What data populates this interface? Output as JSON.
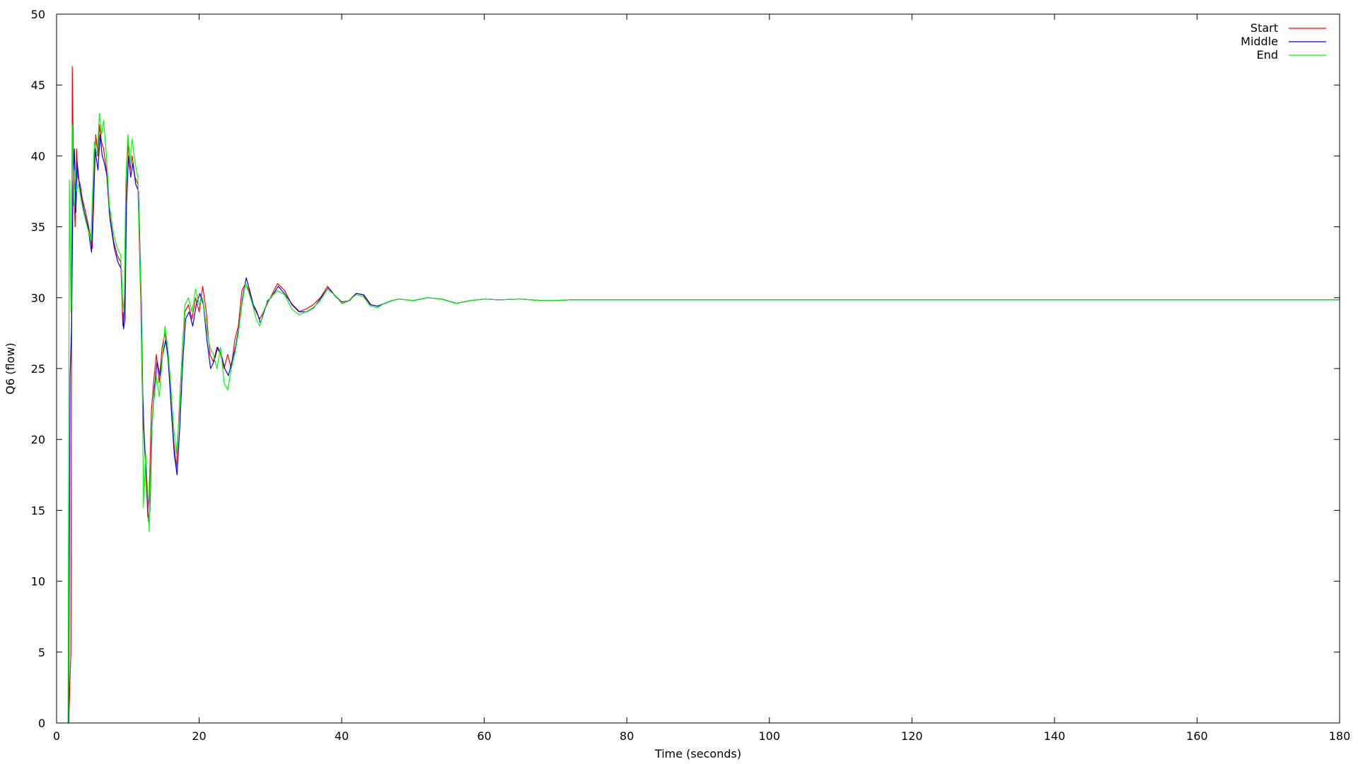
{
  "chart_data": {
    "type": "line",
    "title": "",
    "xlabel": "Time (seconds)",
    "ylabel": "Q6 (flow)",
    "xlim": [
      0,
      180
    ],
    "ylim": [
      0,
      50
    ],
    "xticks": [
      0,
      20,
      40,
      60,
      80,
      100,
      120,
      140,
      160,
      180
    ],
    "yticks": [
      0,
      5,
      10,
      15,
      20,
      25,
      30,
      35,
      40,
      45,
      50
    ],
    "grid": false,
    "legend_position": "top-right",
    "series": [
      {
        "name": "Start",
        "color": "#ff0000",
        "x": [
          1.7,
          2.0,
          2.2,
          2.4,
          2.6,
          2.8,
          3.0,
          3.3,
          3.6,
          4.0,
          4.5,
          5.0,
          5.5,
          5.8,
          6.0,
          6.3,
          6.6,
          7.0,
          7.4,
          7.7,
          8.0,
          8.5,
          9.0,
          9.3,
          9.5,
          9.7,
          10.0,
          10.3,
          10.6,
          11.0,
          11.4,
          11.8,
          12.0,
          12.2,
          12.5,
          12.8,
          13.0,
          13.3,
          13.6,
          14.0,
          14.4,
          14.8,
          15.2,
          15.6,
          16.0,
          16.4,
          16.8,
          17.2,
          17.6,
          18.0,
          18.5,
          19.0,
          19.5,
          20.0,
          20.5,
          21.0,
          21.5,
          22.0,
          22.5,
          23.0,
          23.5,
          24.0,
          24.5,
          25.0,
          25.5,
          26.0,
          26.5,
          27.0,
          27.5,
          28.0,
          28.5,
          29.0,
          29.5,
          30.0,
          31.0,
          32.0,
          33.0,
          34.0,
          35.0,
          36.0,
          37.0,
          38.0,
          39.0,
          40.0,
          41.0,
          42.0,
          43.0,
          44.0,
          45.0,
          46.0,
          47.0,
          48.0,
          50.0,
          52.0,
          54.0,
          56.0,
          58.0,
          60.0,
          62.0,
          65.0,
          68.0,
          70.0,
          72.0,
          75.0,
          80.0,
          85.0,
          90.0,
          100.0,
          120.0,
          140.0,
          160.0,
          180.0
        ],
        "y": [
          0.0,
          5.0,
          46.3,
          38.0,
          35.0,
          40.5,
          38.5,
          38.0,
          37.0,
          36.2,
          35.0,
          33.5,
          41.5,
          40.0,
          42.2,
          41.0,
          40.5,
          39.0,
          36.0,
          35.0,
          34.0,
          33.0,
          32.5,
          28.0,
          29.0,
          37.0,
          41.0,
          39.0,
          40.0,
          38.5,
          38.0,
          30.0,
          24.0,
          21.0,
          18.0,
          14.5,
          16.0,
          22.0,
          24.0,
          26.0,
          24.0,
          26.5,
          27.5,
          26.0,
          23.0,
          20.0,
          18.0,
          22.0,
          26.0,
          29.0,
          29.5,
          28.5,
          30.0,
          29.0,
          30.8,
          29.0,
          26.0,
          25.5,
          26.5,
          26.0,
          25.0,
          26.0,
          25.0,
          27.0,
          28.0,
          30.5,
          31.0,
          30.5,
          29.5,
          29.0,
          28.5,
          29.0,
          29.5,
          30.0,
          31.0,
          30.5,
          29.5,
          29.0,
          29.2,
          29.5,
          30.0,
          30.8,
          30.2,
          29.7,
          29.8,
          30.3,
          30.2,
          29.5,
          29.4,
          29.6,
          29.8,
          29.9,
          29.8,
          30.0,
          29.9,
          29.6,
          29.8,
          29.9,
          29.85,
          29.9,
          29.8,
          29.8,
          29.85,
          29.85,
          29.85,
          29.85,
          29.85,
          29.85,
          29.85,
          29.85,
          29.85,
          29.85
        ]
      },
      {
        "name": "Middle",
        "color": "#0000ff",
        "x": [
          1.7,
          1.9,
          2.1,
          2.3,
          2.5,
          2.7,
          2.9,
          3.2,
          3.5,
          3.9,
          4.4,
          4.9,
          5.4,
          5.8,
          6.1,
          6.4,
          6.7,
          7.1,
          7.5,
          7.8,
          8.1,
          8.6,
          9.1,
          9.4,
          9.6,
          9.8,
          10.1,
          10.4,
          10.7,
          11.1,
          11.5,
          11.9,
          12.1,
          12.3,
          12.6,
          12.9,
          13.1,
          13.4,
          13.7,
          14.1,
          14.5,
          14.9,
          15.3,
          15.7,
          16.1,
          16.5,
          16.9,
          17.3,
          17.7,
          18.1,
          18.6,
          19.1,
          19.6,
          20.1,
          20.6,
          21.1,
          21.6,
          22.1,
          22.6,
          23.1,
          23.6,
          24.1,
          24.6,
          25.1,
          25.6,
          26.1,
          26.6,
          27.1,
          27.6,
          28.1,
          28.6,
          29.1,
          29.6,
          30.1,
          31.1,
          32.1,
          33.1,
          34.1,
          35.1,
          36.1,
          37.1,
          38.1,
          39.1,
          40.1,
          41.1,
          42.1,
          43.1,
          44.1,
          45.1,
          46.1,
          47.1,
          48.1,
          50.1,
          52.1,
          54.1,
          56.1,
          58.1,
          60.1,
          62.1,
          65.1,
          68.1,
          70.1,
          72.1,
          75.1,
          80.1,
          85.1,
          90.1,
          100.0,
          120.0,
          140.0,
          160.0,
          180.0
        ],
        "y": [
          0.0,
          24.5,
          28.0,
          38.0,
          40.5,
          36.0,
          39.5,
          38.0,
          37.0,
          36.0,
          35.0,
          33.2,
          40.5,
          39.0,
          41.5,
          40.0,
          39.5,
          38.5,
          35.5,
          34.5,
          33.5,
          32.5,
          32.0,
          27.8,
          28.5,
          36.5,
          40.0,
          38.5,
          39.5,
          38.0,
          37.5,
          29.5,
          23.0,
          20.0,
          17.5,
          14.2,
          15.0,
          21.0,
          23.5,
          25.5,
          24.5,
          26.0,
          27.0,
          25.5,
          22.0,
          19.0,
          17.5,
          21.0,
          25.5,
          28.5,
          29.0,
          28.0,
          29.5,
          30.3,
          29.5,
          27.0,
          25.0,
          25.5,
          26.5,
          26.0,
          25.0,
          24.5,
          25.5,
          26.5,
          28.0,
          30.0,
          31.4,
          30.5,
          29.5,
          29.0,
          28.2,
          29.0,
          29.8,
          30.0,
          30.8,
          30.2,
          29.5,
          29.0,
          29.0,
          29.3,
          30.0,
          30.7,
          30.1,
          29.6,
          29.8,
          30.3,
          30.2,
          29.5,
          29.4,
          29.6,
          29.8,
          29.9,
          29.8,
          30.0,
          29.9,
          29.6,
          29.8,
          29.9,
          29.85,
          29.9,
          29.8,
          29.8,
          29.85,
          29.85,
          29.85,
          29.85,
          29.85,
          29.85,
          29.85,
          29.85,
          29.85,
          29.85
        ]
      },
      {
        "name": "End",
        "color": "#00ff00",
        "x": [
          1.6,
          1.8,
          2.0,
          2.2,
          2.4,
          2.6,
          2.8,
          3.1,
          3.4,
          3.8,
          4.3,
          4.8,
          5.3,
          5.7,
          6.0,
          6.3,
          6.6,
          7.0,
          7.4,
          7.7,
          8.0,
          8.5,
          9.0,
          9.3,
          9.5,
          9.7,
          10.0,
          10.3,
          10.6,
          11.0,
          11.4,
          11.8,
          12.0,
          12.2,
          12.5,
          12.8,
          13.0,
          13.3,
          13.6,
          14.0,
          14.4,
          14.8,
          15.2,
          15.6,
          16.0,
          16.4,
          16.8,
          17.2,
          17.6,
          18.0,
          18.5,
          19.0,
          19.5,
          20.0,
          20.5,
          21.0,
          21.5,
          22.0,
          22.5,
          23.0,
          23.5,
          24.0,
          24.5,
          25.0,
          25.5,
          26.0,
          26.5,
          27.0,
          27.5,
          28.0,
          28.5,
          29.0,
          29.5,
          30.0,
          31.0,
          32.0,
          33.0,
          34.0,
          35.0,
          36.0,
          37.0,
          38.0,
          39.0,
          40.0,
          41.0,
          42.0,
          43.0,
          44.0,
          45.0,
          46.0,
          47.0,
          48.0,
          50.0,
          52.0,
          54.0,
          56.0,
          58.0,
          60.0,
          62.0,
          65.0,
          68.0,
          70.0,
          72.0,
          75.0,
          80.0,
          85.0,
          90.0,
          100.0,
          120.0,
          140.0,
          160.0,
          180.0
        ],
        "y": [
          0.0,
          38.3,
          29.0,
          42.2,
          36.5,
          39.0,
          37.5,
          38.0,
          37.0,
          36.0,
          35.0,
          34.0,
          41.0,
          40.0,
          43.0,
          41.5,
          42.5,
          40.0,
          36.5,
          35.5,
          34.5,
          33.5,
          33.0,
          29.0,
          30.0,
          38.0,
          41.5,
          39.5,
          41.2,
          39.5,
          38.5,
          31.0,
          25.0,
          15.2,
          19.0,
          16.0,
          13.5,
          20.0,
          22.5,
          24.5,
          23.0,
          25.5,
          28.0,
          26.5,
          24.0,
          21.0,
          19.0,
          21.5,
          26.0,
          29.5,
          30.0,
          29.0,
          30.6,
          29.5,
          30.0,
          28.0,
          26.5,
          26.0,
          25.0,
          26.5,
          24.0,
          23.5,
          25.0,
          26.0,
          27.5,
          29.5,
          31.0,
          30.3,
          29.5,
          28.5,
          28.0,
          29.0,
          29.6,
          30.0,
          30.5,
          30.2,
          29.2,
          28.8,
          29.0,
          29.3,
          29.8,
          30.6,
          30.2,
          29.6,
          29.8,
          30.2,
          30.1,
          29.4,
          29.3,
          29.6,
          29.8,
          29.9,
          29.8,
          30.0,
          29.9,
          29.6,
          29.8,
          29.9,
          29.85,
          29.9,
          29.8,
          29.8,
          29.85,
          29.85,
          29.85,
          29.85,
          29.85,
          29.85,
          29.85,
          29.85,
          29.85,
          29.85
        ]
      }
    ]
  }
}
